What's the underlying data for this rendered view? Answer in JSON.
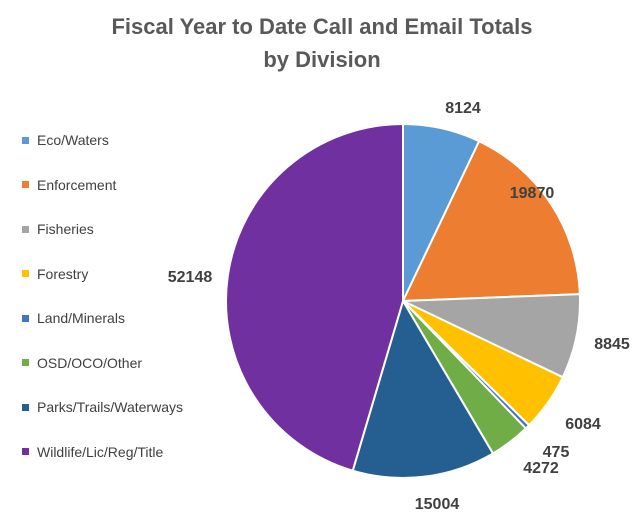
{
  "chart_data": {
    "type": "pie",
    "title": "Fiscal Year to Date Call and Email Totals",
    "subtitle": "by Division",
    "legend_position": "left",
    "slices": [
      {
        "name": "Eco/Waters",
        "value": 8124,
        "color": "#5B9BD5"
      },
      {
        "name": "Enforcement",
        "value": 19870,
        "color": "#ED7D31"
      },
      {
        "name": "Fisheries",
        "value": 8845,
        "color": "#A5A5A5"
      },
      {
        "name": "Forestry",
        "value": 6084,
        "color": "#FFC000"
      },
      {
        "name": "Land/Minerals",
        "value": 475,
        "color": "#4472C4"
      },
      {
        "name": "OSD/OCO/Other",
        "value": 4272,
        "color": "#70AD47"
      },
      {
        "name": "Parks/Trails/Waterways",
        "value": 15004,
        "color": "#255E91"
      },
      {
        "name": "Wildlife/Lic/Reg/Title",
        "value": 52148,
        "color": "#7030A0"
      }
    ],
    "title_color": "#595959"
  }
}
